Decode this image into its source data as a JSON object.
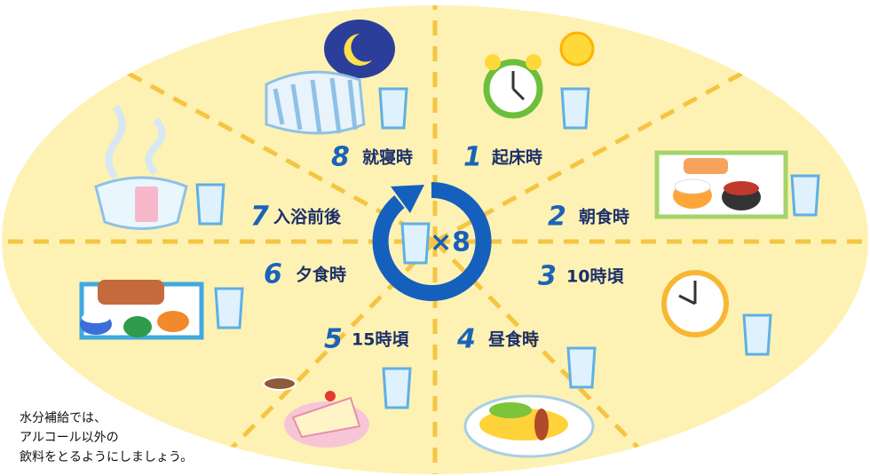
{
  "center": {
    "label": "×8"
  },
  "segments": [
    {
      "number": "1",
      "label": "起床時"
    },
    {
      "number": "2",
      "label": "朝食時"
    },
    {
      "number": "3",
      "label": "10時頃"
    },
    {
      "number": "4",
      "label": "昼食時"
    },
    {
      "number": "5",
      "label": "15時頃"
    },
    {
      "number": "6",
      "label": "夕食時"
    },
    {
      "number": "7",
      "label": "入浴前後"
    },
    {
      "number": "8",
      "label": "就寝時"
    }
  ],
  "note": {
    "lines": [
      "水分補給では、",
      "アルコール以外の",
      "飲料をとるようにしましょう。"
    ]
  }
}
